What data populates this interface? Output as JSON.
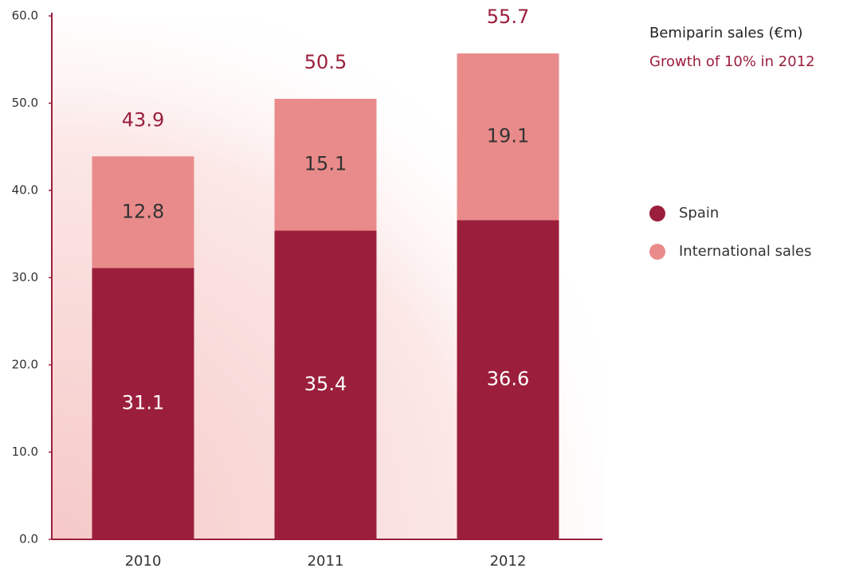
{
  "chart_data": {
    "type": "stacked_bar",
    "title": "Bemiparin sales (€m)",
    "subtitle": "Growth of 10% in 2012",
    "categories": [
      "2010",
      "2011",
      "2012"
    ],
    "series": [
      {
        "name": "Spain",
        "color": "#9b1f3c",
        "values": [
          31.1,
          35.4,
          36.6
        ]
      },
      {
        "name": "International sales",
        "color": "#e98b8a",
        "values": [
          12.8,
          15.1,
          19.1
        ]
      }
    ],
    "totals": [
      43.9,
      50.5,
      55.7
    ],
    "ylim": [
      0,
      60
    ],
    "yticks": [
      {
        "value": 0,
        "label": "0.0"
      },
      {
        "value": 10,
        "label": "10.0"
      },
      {
        "value": 20,
        "label": "20.0"
      },
      {
        "value": 30,
        "label": "30.0"
      },
      {
        "value": 40,
        "label": "40.0"
      },
      {
        "value": 50,
        "label": "50.0"
      },
      {
        "value": 60,
        "label": "60.0"
      }
    ],
    "grid": false,
    "legend": "right"
  }
}
